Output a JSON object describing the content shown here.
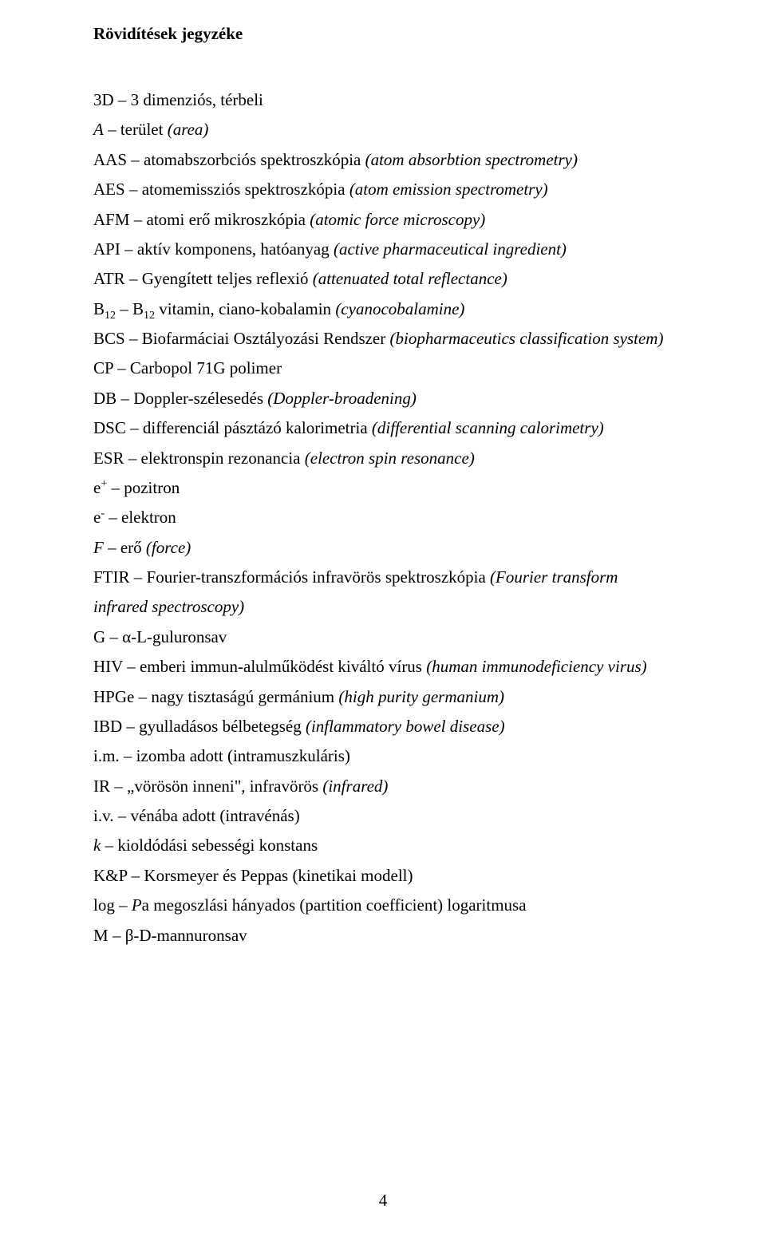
{
  "title": "Rövidítések jegyzéke",
  "entries": [
    {
      "abbr": "3D",
      "sep": " – ",
      "def": "3 dimenziós, térbeli"
    },
    {
      "abbr": "A",
      "abbrItalic": true,
      "sep": " – ",
      "def": "terület ",
      "paren": "(area)"
    },
    {
      "abbr": "AAS",
      "sep": " – ",
      "def": "atomabszorbciós spektroszkópia ",
      "paren": "(atom absorbtion spectrometry)"
    },
    {
      "abbr": "AES",
      "sep": " – ",
      "def": "atomemissziós spektroszkópia ",
      "paren": "(atom emission spectrometry)"
    },
    {
      "abbr": "AFM",
      "sep": " – ",
      "def": "atomi erő mikroszkópia ",
      "paren": "(atomic force microscopy)"
    },
    {
      "abbr": "API",
      "sep": " – ",
      "def": "aktív komponens, hatóanyag ",
      "paren": "(active pharmaceutical ingredient)"
    },
    {
      "abbr": "ATR",
      "sep": " – ",
      "def": "Gyengített teljes reflexió ",
      "paren": "(attenuated total reflectance)"
    },
    {
      "abbr": "B",
      "sub1": "12",
      "sep": " – ",
      "abbr2": "B",
      "sub2": "12",
      "def": " vitamin, ciano-kobalamin ",
      "paren": "(cyanocobalamine)"
    },
    {
      "abbr": "BCS",
      "sep": " – ",
      "def": "Biofarmáciai Osztályozási Rendszer ",
      "paren": "(biopharmaceutics classification system)"
    },
    {
      "abbr": "CP",
      "sep": " – ",
      "def": "Carbopol 71G polimer"
    },
    {
      "abbr": "DB",
      "sep": " – ",
      "def": "Doppler-szélesedés ",
      "paren": "(Doppler-broadening)"
    },
    {
      "abbr": "DSC",
      "sep": " – ",
      "def": "differenciál pásztázó kalorimetria ",
      "paren": "(differential scanning calorimetry)"
    },
    {
      "abbr": "ESR",
      "sep": " – ",
      "def": "elektronspin rezonancia ",
      "paren": "(electron spin resonance)"
    },
    {
      "abbr": "e",
      "sup": "+",
      "sep": " – ",
      "def": "pozitron"
    },
    {
      "abbr": "e",
      "sup": "-",
      "sep": " – ",
      "def": "elektron"
    },
    {
      "abbr": "F",
      "abbrItalic": true,
      "sep": " – ",
      "def": "erő ",
      "paren": "(force)"
    },
    {
      "abbr": "FTIR",
      "sep": " – ",
      "def": "Fourier-transzformációs infravörös spektroszkópia ",
      "paren": "(Fourier transform infrared spectroscopy)"
    },
    {
      "abbr": "G",
      "sep": " – ",
      "def": "α-L-guluronsav"
    },
    {
      "abbr": "HIV",
      "sep": " – ",
      "def": "emberi immun-alulműködést kiváltó vírus ",
      "paren": "(human immunodeficiency virus)"
    },
    {
      "abbr": "HPGe",
      "sep": " – ",
      "def": "nagy tisztaságú germánium ",
      "paren": "(high purity germanium)"
    },
    {
      "abbr": "IBD",
      "sep": " – ",
      "def": "gyulladásos bélbetegség ",
      "paren": "(inflammatory bowel disease)"
    },
    {
      "abbr": "i.m.",
      "sep": " – ",
      "def": "izomba adott (intramuszkuláris)"
    },
    {
      "abbr": "IR",
      "sep": " – ",
      "def": "„vörösön inneni\", infravörös ",
      "paren": "(infrared)"
    },
    {
      "abbr": "i.v.",
      "sep": " – ",
      "def": "vénába adott (intravénás)"
    },
    {
      "abbr": "k",
      "abbrItalic": true,
      "sep": " – ",
      "def": "kioldódási sebességi konstans"
    },
    {
      "abbr": "K&P",
      "sep": " – ",
      "def": "Korsmeyer és Peppas (kinetikai modell)"
    },
    {
      "abbr": "log",
      "abbr2": "P",
      "abbr2Italic": true,
      "sep": " – ",
      "def": "a megoszlási hányados (partition coefficient) logaritmusa"
    },
    {
      "abbr": "M",
      "sep": " – ",
      "def": "β-D-mannuronsav"
    }
  ],
  "pageNumber": "4"
}
